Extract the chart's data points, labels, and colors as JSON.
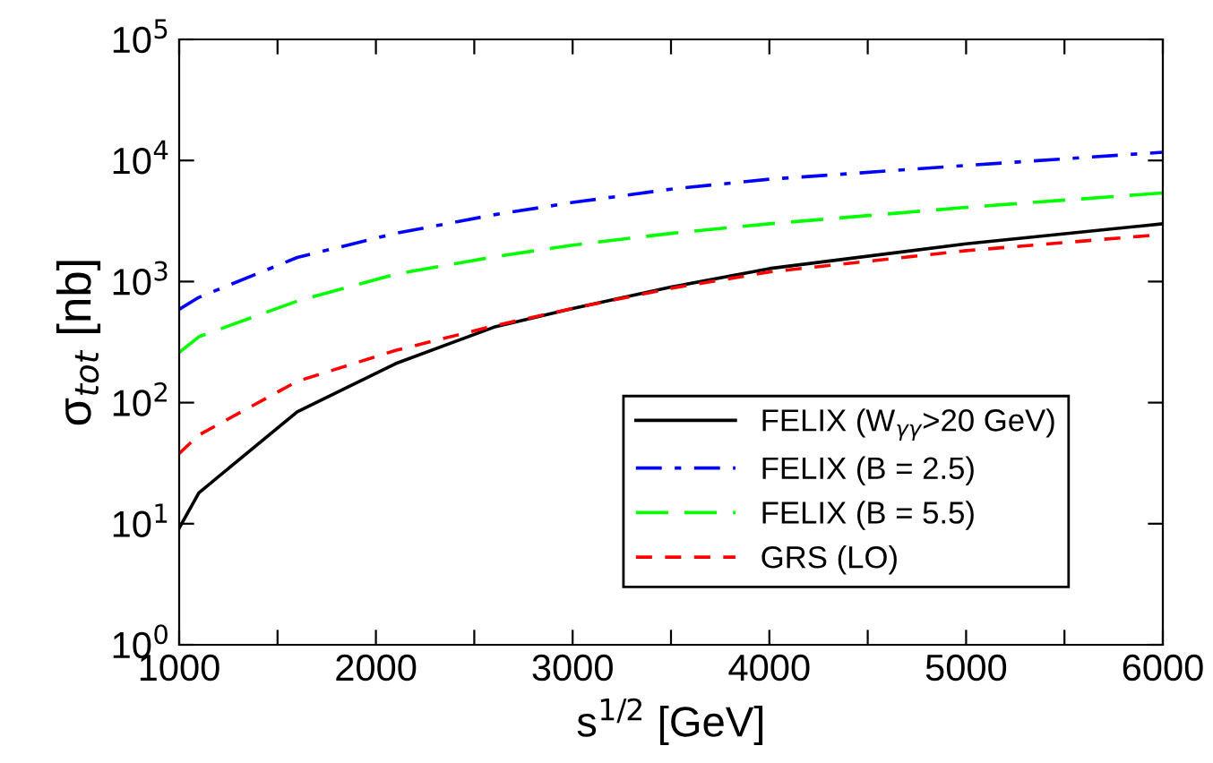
{
  "chart_data": {
    "type": "line",
    "xlabel": "s$^{1/2}$ [GeV]",
    "ylabel": "σ$_{tot}$ [nb]",
    "log": "y",
    "x": [
      1000,
      1100,
      1600,
      2100,
      2600,
      3000,
      3500,
      4000,
      5000,
      6000
    ],
    "xlim": [
      1000,
      6000
    ],
    "xticks": [
      1000,
      {
        "value": 1500,
        "label": null
      },
      2000,
      {
        "value": 2500,
        "label": null
      },
      3000,
      {
        "value": 3500,
        "label": null
      },
      4000,
      {
        "value": 4500,
        "label": null
      },
      5000,
      {
        "value": 5500,
        "label": null
      },
      6000
    ],
    "ylim": [
      1,
      100000
    ],
    "yticks": [
      {
        "value": 1,
        "label": "10$^{0}$"
      },
      {
        "value": 10,
        "label": "10$^{1}$"
      },
      {
        "value": 100,
        "label": "10$^{2}$"
      },
      {
        "value": 1000,
        "label": "10$^{3}$"
      },
      {
        "value": 10000,
        "label": "10$^{4}$"
      },
      {
        "value": 100000,
        "label": "10$^{5}$"
      }
    ],
    "grid": false,
    "legend": "bottom right",
    "marker": "none",
    "series": [
      {
        "name": "FELIX (W$_{γγ}$>20 GeV)",
        "color": "#000000",
        "line_style": "solid",
        "values": [
          9.2,
          18,
          84,
          210,
          420,
          600,
          900,
          1280,
          2050,
          3000
        ]
      },
      {
        "name": "FELIX (B = 2.5)",
        "color": "#0000ff",
        "line_style": "dashdot",
        "values": [
          590,
          740,
          1580,
          2500,
          3560,
          4500,
          5800,
          7000,
          9100,
          11700
        ]
      },
      {
        "name": "FELIX (B = 5.5)",
        "color": "#00ff00",
        "line_style": "dashed",
        "values": [
          260,
          350,
          690,
          1150,
          1600,
          2000,
          2500,
          3000,
          4100,
          5400
        ]
      },
      {
        "name": "GRS (LO)",
        "color": "#ff0000",
        "line_style": "dotted",
        "values": [
          38,
          54,
          150,
          270,
          430,
          600,
          880,
          1200,
          1800,
          2450
        ]
      }
    ]
  }
}
